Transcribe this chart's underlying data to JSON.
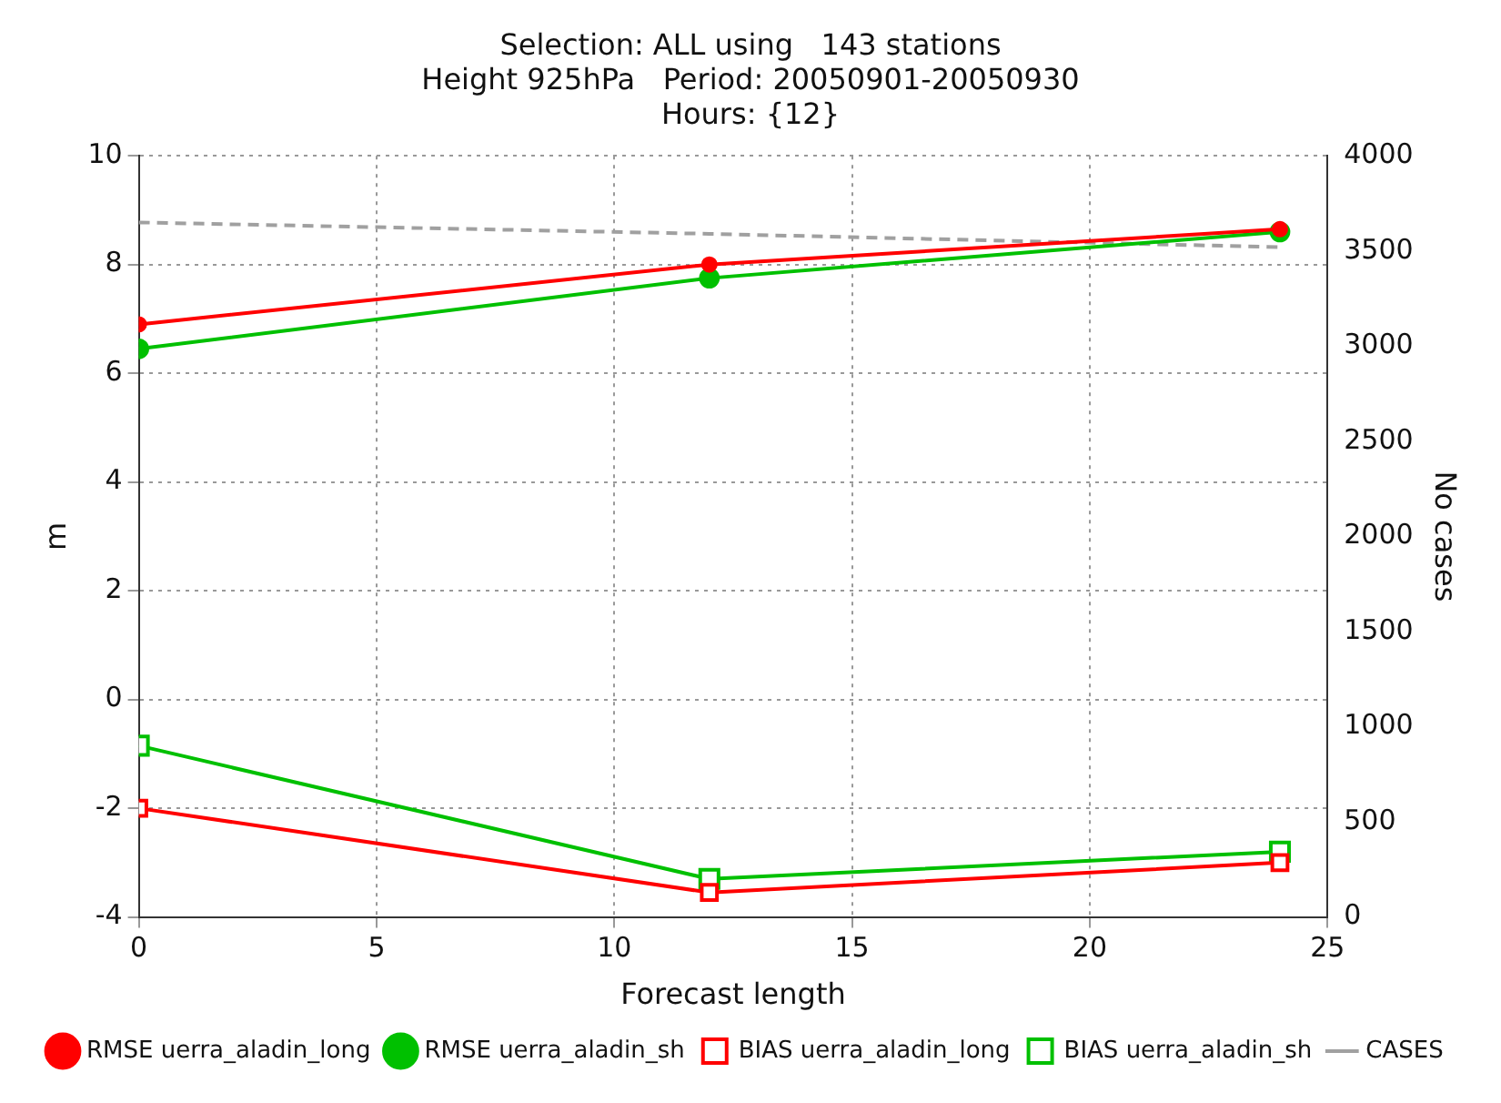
{
  "chart_data": {
    "type": "line",
    "title": "Selection: ALL using   143 stations",
    "subtitle": "Height 925hPa   Period: 20050901-20050930\nHours: {12}",
    "xlabel": "Forecast length",
    "ylabel": "m",
    "y2label": "No cases",
    "x": [
      0,
      12,
      24
    ],
    "series": [
      {
        "name": "RMSE uerra_aladin_long",
        "color": "#ff0000",
        "marker": "circle",
        "values": [
          6.9,
          8.0,
          8.65
        ]
      },
      {
        "name": "RMSE uerra_aladin_sh",
        "color": "#00c000",
        "marker": "circle",
        "values": [
          6.45,
          7.75,
          8.6
        ]
      },
      {
        "name": "BIAS uerra_aladin_long",
        "color": "#ff0000",
        "marker": "square",
        "values": [
          -2.0,
          -3.55,
          -3.0
        ]
      },
      {
        "name": "BIAS uerra_aladin_sh",
        "color": "#00c000",
        "marker": "square",
        "values": [
          -0.85,
          -3.3,
          -2.8
        ]
      },
      {
        "name": "CASES",
        "color": "#a0a0a0",
        "marker": "none",
        "line_style": "dashed",
        "axis": "y2",
        "values": [
          3650,
          3590,
          3520
        ]
      }
    ],
    "xlim": [
      0,
      25
    ],
    "xticks": [
      0,
      5,
      10,
      15,
      20,
      25
    ],
    "ylim": [
      -4,
      10
    ],
    "yticks": [
      -4,
      -2,
      0,
      2,
      4,
      6,
      8,
      10
    ],
    "y2lim": [
      0,
      4000
    ],
    "y2ticks": [
      0,
      500,
      1000,
      1500,
      2000,
      2500,
      3000,
      3500,
      4000
    ],
    "grid": true,
    "legend": "bottom"
  }
}
